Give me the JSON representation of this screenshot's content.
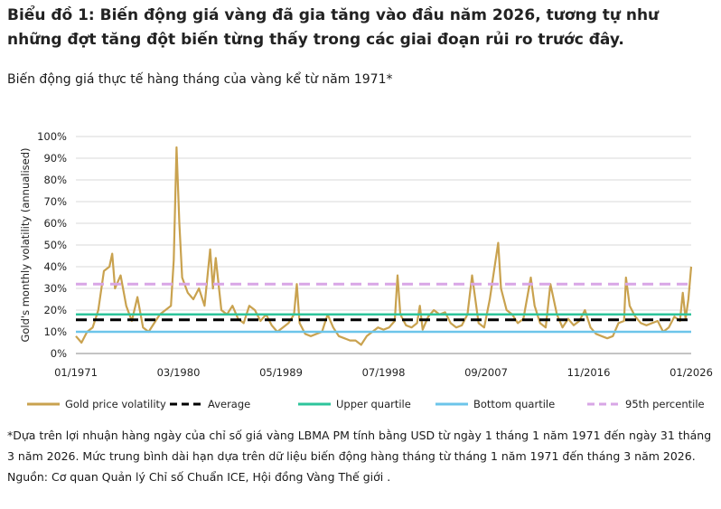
{
  "header": {
    "title_lines": [
      "Biểu đồ 1: Biến động giá vàng đã gia tăng vào đầu năm 2026, tương tự như",
      "những đợt tăng đột biến từng thấy trong các giai đoạn rủi ro trước đây."
    ],
    "subtitle": "Biến động giá thực tế hàng tháng của vàng kể từ năm 1971*"
  },
  "chart_data": {
    "type": "line",
    "ylabel": "Gold's monthly volatility (annualised)",
    "x": [
      "01/1971",
      "07/1971",
      "01/1972",
      "07/1972",
      "01/1973",
      "07/1973",
      "01/1974",
      "04/1974",
      "07/1974",
      "01/1975",
      "07/1975",
      "01/1976",
      "07/1976",
      "01/1977",
      "07/1977",
      "01/1978",
      "07/1978",
      "01/1979",
      "07/1979",
      "10/1979",
      "01/1980",
      "04/1980",
      "07/1980",
      "01/1981",
      "07/1981",
      "01/1982",
      "07/1982",
      "01/1983",
      "04/1983",
      "07/1983",
      "01/1984",
      "07/1984",
      "01/1985",
      "07/1985",
      "01/1986",
      "07/1986",
      "01/1987",
      "07/1987",
      "01/1988",
      "07/1988",
      "01/1989",
      "07/1989",
      "01/1990",
      "07/1990",
      "10/1990",
      "01/1991",
      "07/1991",
      "01/1992",
      "07/1992",
      "01/1993",
      "07/1993",
      "01/1994",
      "07/1994",
      "01/1995",
      "07/1995",
      "01/1996",
      "07/1996",
      "01/1997",
      "07/1997",
      "01/1998",
      "07/1998",
      "01/1999",
      "07/1999",
      "10/1999",
      "01/2000",
      "07/2000",
      "01/2001",
      "07/2001",
      "10/2001",
      "01/2002",
      "07/2002",
      "01/2003",
      "07/2003",
      "01/2004",
      "07/2004",
      "01/2005",
      "07/2005",
      "01/2006",
      "06/2006",
      "01/2007",
      "07/2007",
      "01/2008",
      "10/2008",
      "01/2009",
      "07/2009",
      "01/2010",
      "07/2010",
      "01/2011",
      "09/2011",
      "01/2012",
      "07/2012",
      "01/2013",
      "06/2013",
      "01/2014",
      "07/2014",
      "01/2015",
      "07/2015",
      "01/2016",
      "07/2016",
      "01/2017",
      "07/2017",
      "01/2018",
      "07/2018",
      "01/2019",
      "07/2019",
      "01/2020",
      "03/2020",
      "07/2020",
      "01/2021",
      "07/2021",
      "01/2022",
      "07/2022",
      "01/2023",
      "07/2023",
      "01/2024",
      "07/2024",
      "01/2025",
      "04/2025",
      "07/2025",
      "10/2025",
      "01/2026"
    ],
    "series": [
      {
        "name": "Gold price volatility",
        "color": "#c9a24f",
        "values": [
          8,
          5,
          10,
          12,
          20,
          38,
          40,
          46,
          30,
          36,
          22,
          15,
          26,
          12,
          10,
          14,
          18,
          20,
          22,
          43,
          95,
          60,
          35,
          28,
          25,
          30,
          22,
          48,
          30,
          44,
          20,
          18,
          22,
          16,
          14,
          22,
          20,
          15,
          18,
          13,
          10,
          12,
          14,
          18,
          32,
          14,
          9,
          8,
          9,
          10,
          18,
          12,
          8,
          7,
          6,
          6,
          4,
          8,
          10,
          12,
          11,
          12,
          15,
          36,
          18,
          13,
          12,
          14,
          22,
          11,
          17,
          20,
          18,
          19,
          14,
          12,
          13,
          18,
          36,
          14,
          12,
          25,
          51,
          30,
          20,
          18,
          14,
          16,
          35,
          22,
          14,
          12,
          32,
          18,
          12,
          16,
          13,
          15,
          20,
          12,
          9,
          8,
          7,
          8,
          14,
          15,
          35,
          22,
          17,
          14,
          13,
          14,
          15,
          10,
          12,
          17,
          15,
          28,
          16,
          25,
          40
        ]
      }
    ],
    "reference_lines": [
      {
        "name": "Average",
        "color": "#000000",
        "value": 15.5,
        "dash": true
      },
      {
        "name": "Upper quartile",
        "color": "#2ec49b",
        "value": 18,
        "dash": false
      },
      {
        "name": "Bottom quartile",
        "color": "#6cc5ea",
        "value": 10,
        "dash": false
      },
      {
        "name": "95th percentile",
        "color": "#d8a6e6",
        "value": 32,
        "dash": true
      }
    ],
    "ylim": [
      0,
      100
    ],
    "yticks": [
      {
        "value": 0,
        "label": "0%"
      },
      {
        "value": 10,
        "label": "10%"
      },
      {
        "value": 20,
        "label": "20%"
      },
      {
        "value": 30,
        "label": "30%"
      },
      {
        "value": 40,
        "label": "40%"
      },
      {
        "value": 50,
        "label": "50%"
      },
      {
        "value": 60,
        "label": "60%"
      },
      {
        "value": 70,
        "label": "70%"
      },
      {
        "value": 80,
        "label": "80%"
      },
      {
        "value": 90,
        "label": "90%"
      },
      {
        "value": 100,
        "label": "100%"
      }
    ],
    "xticks": [
      "01/1971",
      "03/1980",
      "05/1989",
      "07/1998",
      "09/2007",
      "11/2016",
      "01/2026"
    ]
  },
  "footer": {
    "note": "*Dựa trên lợi nhuận hàng ngày của chỉ số giá vàng LBMA PM tính bằng USD từ ngày 1 tháng 1 năm 1971 đến ngày 31 tháng 3 năm 2026. Mức trung bình dài hạn dựa trên dữ liệu biến động hàng tháng từ tháng 1 năm 1971 đến tháng 3 năm 2026.",
    "source": "Nguồn: Cơ quan Quản lý Chỉ số Chuẩn ICE, Hội đồng Vàng Thế giới ."
  }
}
